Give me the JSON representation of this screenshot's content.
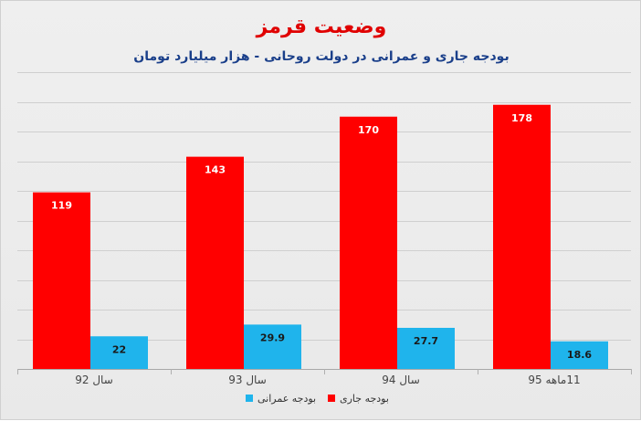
{
  "chart_data": {
    "type": "bar",
    "title": "وضعیت قرمز",
    "subtitle": "بودجه جاری و عمرانی در دولت روحانی - هزار میلیارد تومان",
    "categories": [
      "سال 92",
      "سال 93",
      "سال 94",
      "11ماهه 95"
    ],
    "series": [
      {
        "name": "بودجه جاری",
        "color": "#ff0000",
        "label_color": "#ffffff",
        "values": [
          119,
          143,
          170,
          178
        ]
      },
      {
        "name": "بودجه عمرانی",
        "color": "#1fb4ec",
        "label_color": "#1a1a1a",
        "values": [
          22,
          29.9,
          27.7,
          18.6
        ]
      }
    ],
    "ylim": [
      0,
      200
    ],
    "grid": true,
    "legend_position": "bottom",
    "xlabel": "",
    "ylabel": ""
  }
}
